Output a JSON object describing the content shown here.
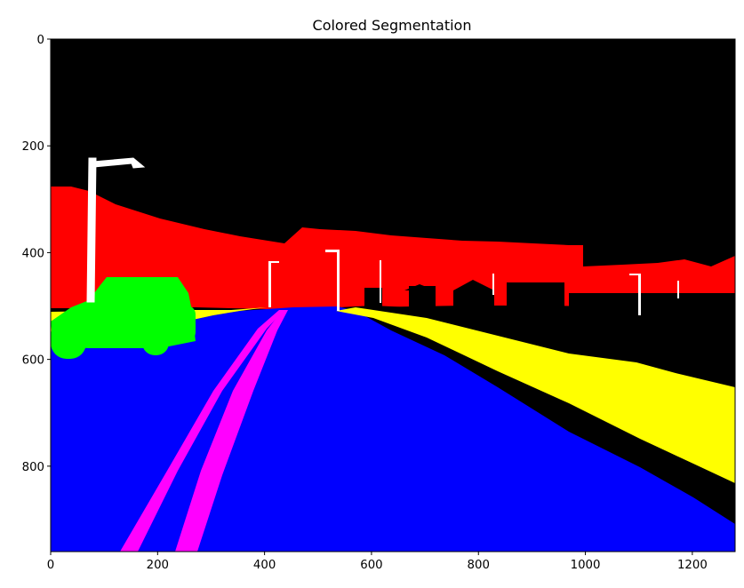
{
  "chart_data": {
    "type": "image",
    "title": "Colored Segmentation",
    "xlim": [
      0,
      1280
    ],
    "ylim": [
      960,
      0
    ],
    "xticks": [
      0,
      200,
      400,
      600,
      800,
      1000,
      1200
    ],
    "yticks": [
      0,
      200,
      400,
      600,
      800
    ],
    "grid": false,
    "classes": [
      {
        "name": "background",
        "color": "#000000"
      },
      {
        "name": "vegetation/terrain",
        "color": "#ff0000"
      },
      {
        "name": "road",
        "color": "#0000ff"
      },
      {
        "name": "sidewalk",
        "color": "#ffff00"
      },
      {
        "name": "lane marking",
        "color": "#ff00ff"
      },
      {
        "name": "car",
        "color": "#00ff00"
      },
      {
        "name": "pole",
        "color": "#ffffff"
      }
    ]
  }
}
